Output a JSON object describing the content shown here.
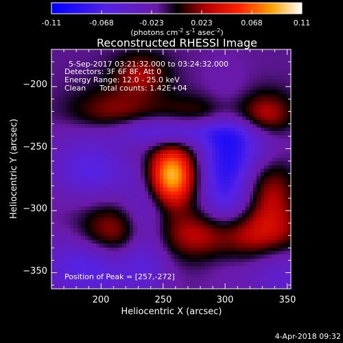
{
  "chart_data": {
    "type": "heatmap",
    "title": "Reconstructed RHESSI Image",
    "xlabel": "Heliocentric X (arcsec)",
    "ylabel": "Heliocentric Y (arcsec)",
    "xlim": [
      160,
      353
    ],
    "ylim": [
      -363,
      -170
    ],
    "xticks": [
      200,
      250,
      300,
      350
    ],
    "yticks": [
      -200,
      -250,
      -300,
      -350
    ],
    "colorbar": {
      "ticks": [
        "-0.11",
        "-0.068",
        "-0.023",
        "0.023",
        "0.068",
        "0.11"
      ],
      "min": -0.11,
      "max": 0.11,
      "units_text": "(photons cm",
      "units_exp1": "-2",
      "units_mid1": " s",
      "units_exp2": "-1",
      "units_mid2": " asec",
      "units_exp3": "-2",
      "units_end": ")"
    },
    "annotations": {
      "time_range": "5-Sep-2017 03:21:32.000 to 03:24:32.000",
      "detectors": "Detectors: 3F 6F 8F, Att 0",
      "energy_range": "Energy Range: 12.0 - 25.0 keV",
      "method": "Clean",
      "total_counts": "Total counts: 1.42E+04",
      "peak": "Position of Peak = [257,-272]"
    },
    "peak": [
      257,
      -272
    ],
    "peak_value": 0.11,
    "components": [
      {
        "x": 257,
        "y": -272,
        "amp": 0.11,
        "sx": 13,
        "sy": 17
      },
      {
        "x": 290,
        "y": -228,
        "amp": 0.048,
        "sx": 32,
        "sy": 13
      },
      {
        "x": 335,
        "y": -225,
        "amp": 0.038,
        "sx": 14,
        "sy": 14
      },
      {
        "x": 302,
        "y": -320,
        "amp": 0.058,
        "sx": 44,
        "sy": 14
      },
      {
        "x": 338,
        "y": -288,
        "amp": 0.04,
        "sx": 13,
        "sy": 22
      },
      {
        "x": 210,
        "y": -318,
        "amp": 0.045,
        "sx": 20,
        "sy": 16
      },
      {
        "x": 210,
        "y": -225,
        "amp": 0.04,
        "sx": 25,
        "sy": 16
      },
      {
        "x": 232,
        "y": -190,
        "amp": 0.038,
        "sx": 16,
        "sy": 12
      },
      {
        "x": 262,
        "y": -236,
        "amp": -0.07,
        "sx": 44,
        "sy": 9
      },
      {
        "x": 300,
        "y": -272,
        "amp": -0.06,
        "sx": 14,
        "sy": 38
      },
      {
        "x": 236,
        "y": -320,
        "amp": -0.045,
        "sx": 14,
        "sy": 32
      },
      {
        "x": 192,
        "y": -265,
        "amp": -0.045,
        "sx": 22,
        "sy": 18
      },
      {
        "x": 190,
        "y": -345,
        "amp": -0.05,
        "sx": 26,
        "sy": 18
      },
      {
        "x": 320,
        "y": -248,
        "amp": -0.035,
        "sx": 20,
        "sy": 16
      },
      {
        "x": 346,
        "y": -350,
        "amp": -0.03,
        "sx": 20,
        "sy": 20
      }
    ]
  },
  "footer": {
    "timestamp": "4-Apr-2018 09:32"
  }
}
